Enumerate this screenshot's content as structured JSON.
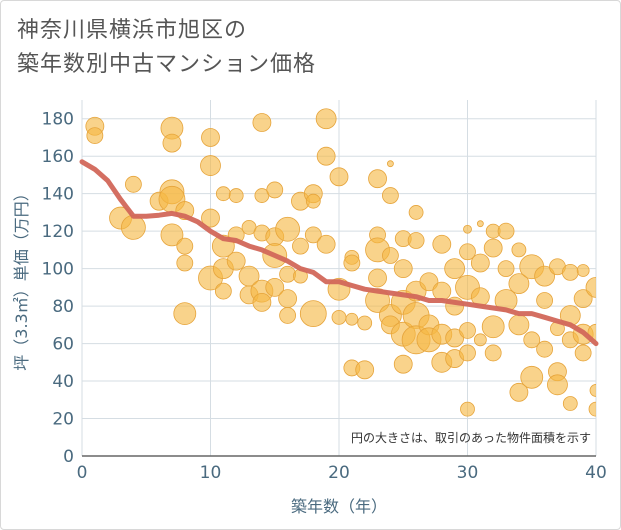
{
  "title_lines": [
    "神奈川県横浜市旭区の",
    "築年数別中古マンション価格"
  ],
  "note": "円の大きさは、取引のあった物件面積を示す",
  "colors": {
    "bubble": "#f5b843",
    "bubble_edge": "#e6a43b",
    "trend": "#d2675a",
    "grid": "#d5dde3",
    "axis": "#666666"
  },
  "chart_data": {
    "type": "scatter",
    "xlabel": "築年数（年）",
    "ylabel": "坪（3.3㎡）単価（万円）",
    "xlim": [
      0,
      40
    ],
    "ylim": [
      0,
      190
    ],
    "xticks": [
      0,
      10,
      20,
      30,
      40
    ],
    "yticks": [
      0,
      20,
      40,
      60,
      80,
      100,
      120,
      140,
      160,
      180
    ],
    "grid": true,
    "trend": {
      "x": [
        0,
        1,
        2,
        3,
        4,
        5,
        6,
        7,
        8,
        9,
        10,
        11,
        12,
        13,
        14,
        15,
        16,
        17,
        18,
        19,
        20,
        21,
        22,
        23,
        24,
        25,
        26,
        27,
        28,
        29,
        30,
        31,
        32,
        33,
        34,
        35,
        36,
        37,
        38,
        39,
        40
      ],
      "y": [
        157,
        153,
        147,
        137,
        128,
        128,
        128.5,
        129.5,
        128,
        125,
        120,
        116,
        115,
        112,
        110,
        107,
        104,
        100,
        98,
        93,
        93,
        91,
        89,
        88,
        87,
        86,
        85,
        83,
        83,
        82,
        81,
        80,
        79,
        78,
        76,
        76,
        74,
        72,
        70,
        66,
        60
      ]
    },
    "points": [
      {
        "x": 1,
        "y": 176,
        "s": 9
      },
      {
        "x": 1,
        "y": 171,
        "s": 8
      },
      {
        "x": 3,
        "y": 127,
        "s": 11
      },
      {
        "x": 4,
        "y": 145,
        "s": 8
      },
      {
        "x": 4,
        "y": 122,
        "s": 12
      },
      {
        "x": 6,
        "y": 136,
        "s": 9
      },
      {
        "x": 7,
        "y": 175,
        "s": 11
      },
      {
        "x": 7,
        "y": 167,
        "s": 9
      },
      {
        "x": 7,
        "y": 141,
        "s": 12
      },
      {
        "x": 7,
        "y": 137,
        "s": 13
      },
      {
        "x": 7,
        "y": 118,
        "s": 11
      },
      {
        "x": 8,
        "y": 131,
        "s": 9
      },
      {
        "x": 8,
        "y": 112,
        "s": 8
      },
      {
        "x": 8,
        "y": 103,
        "s": 8
      },
      {
        "x": 8,
        "y": 76,
        "s": 11
      },
      {
        "x": 10,
        "y": 170,
        "s": 9
      },
      {
        "x": 10,
        "y": 155,
        "s": 10
      },
      {
        "x": 10,
        "y": 127,
        "s": 9
      },
      {
        "x": 10,
        "y": 95,
        "s": 12
      },
      {
        "x": 11,
        "y": 140,
        "s": 7
      },
      {
        "x": 11,
        "y": 112,
        "s": 11
      },
      {
        "x": 11,
        "y": 100,
        "s": 10
      },
      {
        "x": 11,
        "y": 88,
        "s": 8
      },
      {
        "x": 12,
        "y": 139,
        "s": 7
      },
      {
        "x": 12,
        "y": 118,
        "s": 8
      },
      {
        "x": 12,
        "y": 104,
        "s": 9
      },
      {
        "x": 13,
        "y": 122,
        "s": 7
      },
      {
        "x": 13,
        "y": 96,
        "s": 10
      },
      {
        "x": 13,
        "y": 86,
        "s": 9
      },
      {
        "x": 14,
        "y": 178,
        "s": 9
      },
      {
        "x": 14,
        "y": 139,
        "s": 7
      },
      {
        "x": 14,
        "y": 119,
        "s": 8
      },
      {
        "x": 14,
        "y": 88,
        "s": 11
      },
      {
        "x": 14,
        "y": 82,
        "s": 9
      },
      {
        "x": 15,
        "y": 142,
        "s": 8
      },
      {
        "x": 15,
        "y": 117,
        "s": 9
      },
      {
        "x": 15,
        "y": 107,
        "s": 12
      },
      {
        "x": 15,
        "y": 90,
        "s": 9
      },
      {
        "x": 16,
        "y": 121,
        "s": 12
      },
      {
        "x": 16,
        "y": 97,
        "s": 8
      },
      {
        "x": 16,
        "y": 84,
        "s": 9
      },
      {
        "x": 16,
        "y": 75,
        "s": 8
      },
      {
        "x": 17,
        "y": 136,
        "s": 9
      },
      {
        "x": 17,
        "y": 112,
        "s": 8
      },
      {
        "x": 17,
        "y": 96,
        "s": 7
      },
      {
        "x": 18,
        "y": 140,
        "s": 9
      },
      {
        "x": 18,
        "y": 136,
        "s": 7
      },
      {
        "x": 18,
        "y": 118,
        "s": 8
      },
      {
        "x": 18,
        "y": 76,
        "s": 13
      },
      {
        "x": 19,
        "y": 180,
        "s": 10
      },
      {
        "x": 19,
        "y": 160,
        "s": 9
      },
      {
        "x": 19,
        "y": 113,
        "s": 9
      },
      {
        "x": 20,
        "y": 149,
        "s": 9
      },
      {
        "x": 20,
        "y": 89,
        "s": 11
      },
      {
        "x": 20,
        "y": 74,
        "s": 7
      },
      {
        "x": 21,
        "y": 106,
        "s": 7
      },
      {
        "x": 21,
        "y": 103,
        "s": 8
      },
      {
        "x": 21,
        "y": 73,
        "s": 6
      },
      {
        "x": 21,
        "y": 47,
        "s": 8
      },
      {
        "x": 22,
        "y": 71,
        "s": 7
      },
      {
        "x": 22,
        "y": 46,
        "s": 9
      },
      {
        "x": 23,
        "y": 148,
        "s": 9
      },
      {
        "x": 23,
        "y": 118,
        "s": 8
      },
      {
        "x": 23,
        "y": 110,
        "s": 12
      },
      {
        "x": 23,
        "y": 95,
        "s": 9
      },
      {
        "x": 23,
        "y": 83,
        "s": 12
      },
      {
        "x": 24,
        "y": 156,
        "s": 3
      },
      {
        "x": 24,
        "y": 139,
        "s": 8
      },
      {
        "x": 24,
        "y": 107,
        "s": 8
      },
      {
        "x": 24,
        "y": 75,
        "s": 11
      },
      {
        "x": 24,
        "y": 70,
        "s": 9
      },
      {
        "x": 25,
        "y": 116,
        "s": 8
      },
      {
        "x": 25,
        "y": 100,
        "s": 9
      },
      {
        "x": 25,
        "y": 82,
        "s": 12
      },
      {
        "x": 25,
        "y": 65,
        "s": 12
      },
      {
        "x": 25,
        "y": 49,
        "s": 9
      },
      {
        "x": 26,
        "y": 130,
        "s": 7
      },
      {
        "x": 26,
        "y": 115,
        "s": 8
      },
      {
        "x": 26,
        "y": 88,
        "s": 10
      },
      {
        "x": 26,
        "y": 75,
        "s": 13
      },
      {
        "x": 26,
        "y": 62,
        "s": 14
      },
      {
        "x": 27,
        "y": 93,
        "s": 9
      },
      {
        "x": 27,
        "y": 70,
        "s": 10
      },
      {
        "x": 27,
        "y": 62,
        "s": 12
      },
      {
        "x": 28,
        "y": 113,
        "s": 9
      },
      {
        "x": 28,
        "y": 88,
        "s": 9
      },
      {
        "x": 28,
        "y": 65,
        "s": 10
      },
      {
        "x": 28,
        "y": 50,
        "s": 10
      },
      {
        "x": 29,
        "y": 100,
        "s": 10
      },
      {
        "x": 29,
        "y": 80,
        "s": 9
      },
      {
        "x": 29,
        "y": 63,
        "s": 9
      },
      {
        "x": 29,
        "y": 52,
        "s": 9
      },
      {
        "x": 30,
        "y": 121,
        "s": 4
      },
      {
        "x": 30,
        "y": 109,
        "s": 8
      },
      {
        "x": 30,
        "y": 90,
        "s": 12
      },
      {
        "x": 30,
        "y": 67,
        "s": 8
      },
      {
        "x": 30,
        "y": 55,
        "s": 8
      },
      {
        "x": 30,
        "y": 25,
        "s": 7
      },
      {
        "x": 31,
        "y": 124,
        "s": 3
      },
      {
        "x": 31,
        "y": 103,
        "s": 9
      },
      {
        "x": 31,
        "y": 85,
        "s": 9
      },
      {
        "x": 31,
        "y": 62,
        "s": 6
      },
      {
        "x": 32,
        "y": 120,
        "s": 7
      },
      {
        "x": 32,
        "y": 111,
        "s": 9
      },
      {
        "x": 32,
        "y": 69,
        "s": 11
      },
      {
        "x": 32,
        "y": 55,
        "s": 8
      },
      {
        "x": 33,
        "y": 120,
        "s": 8
      },
      {
        "x": 33,
        "y": 100,
        "s": 8
      },
      {
        "x": 33,
        "y": 83,
        "s": 11
      },
      {
        "x": 34,
        "y": 110,
        "s": 7
      },
      {
        "x": 34,
        "y": 92,
        "s": 10
      },
      {
        "x": 34,
        "y": 70,
        "s": 10
      },
      {
        "x": 34,
        "y": 34,
        "s": 9
      },
      {
        "x": 35,
        "y": 101,
        "s": 12
      },
      {
        "x": 35,
        "y": 62,
        "s": 8
      },
      {
        "x": 35,
        "y": 42,
        "s": 11
      },
      {
        "x": 36,
        "y": 96,
        "s": 10
      },
      {
        "x": 36,
        "y": 83,
        "s": 8
      },
      {
        "x": 36,
        "y": 57,
        "s": 8
      },
      {
        "x": 37,
        "y": 101,
        "s": 8
      },
      {
        "x": 37,
        "y": 68,
        "s": 7
      },
      {
        "x": 37,
        "y": 45,
        "s": 9
      },
      {
        "x": 37,
        "y": 38,
        "s": 10
      },
      {
        "x": 38,
        "y": 98,
        "s": 8
      },
      {
        "x": 38,
        "y": 75,
        "s": 10
      },
      {
        "x": 38,
        "y": 62,
        "s": 8
      },
      {
        "x": 38,
        "y": 28,
        "s": 7
      },
      {
        "x": 39,
        "y": 99,
        "s": 6
      },
      {
        "x": 39,
        "y": 84,
        "s": 9
      },
      {
        "x": 39,
        "y": 65,
        "s": 10
      },
      {
        "x": 39,
        "y": 55,
        "s": 8
      },
      {
        "x": 40,
        "y": 90,
        "s": 10
      },
      {
        "x": 40,
        "y": 66,
        "s": 8
      },
      {
        "x": 40,
        "y": 35,
        "s": 6
      },
      {
        "x": 40,
        "y": 25,
        "s": 7
      }
    ]
  }
}
